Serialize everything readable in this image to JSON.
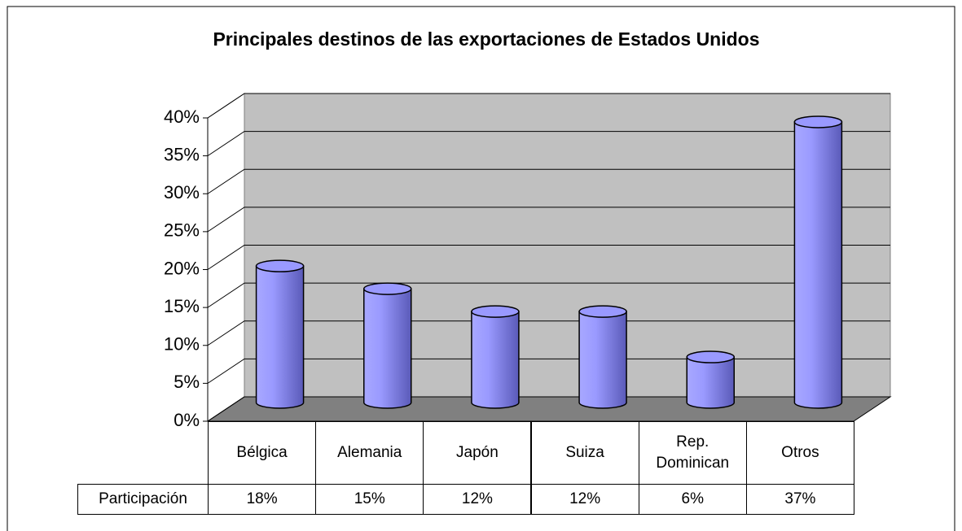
{
  "chart_data": {
    "type": "bar3d",
    "title": "Principales destinos de las exportaciones de Estados Unidos",
    "categories": [
      "Bélgica",
      "Alemania",
      "Japón",
      "Suiza",
      "Rep. Dominican",
      "Otros"
    ],
    "series": [
      {
        "name": "Participación",
        "color": "#9999ff",
        "values": [
          18,
          15,
          12,
          12,
          6,
          37
        ],
        "value_labels": [
          "18%",
          "15%",
          "12%",
          "12%",
          "6%",
          "37%"
        ]
      }
    ],
    "ylim": [
      0,
      40
    ],
    "yticks": [
      {
        "value": 0,
        "label": "0%"
      },
      {
        "value": 5,
        "label": "5%"
      },
      {
        "value": 10,
        "label": "10%"
      },
      {
        "value": 15,
        "label": "15%"
      },
      {
        "value": 20,
        "label": "20%"
      },
      {
        "value": 25,
        "label": "25%"
      },
      {
        "value": 30,
        "label": "30%"
      },
      {
        "value": 35,
        "label": "35%"
      },
      {
        "value": 40,
        "label": "40%"
      }
    ],
    "grid": true
  }
}
